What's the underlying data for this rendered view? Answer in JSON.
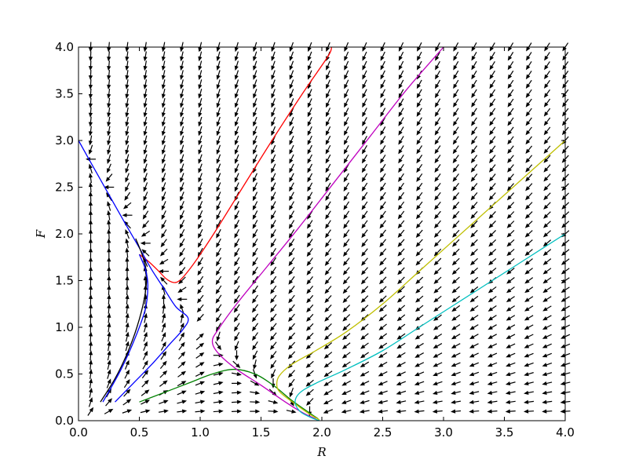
{
  "chart_data": {
    "type": "line",
    "title": "",
    "xlabel": "R",
    "ylabel": "F",
    "xlim": [
      0,
      4
    ],
    "ylim": [
      0,
      4
    ],
    "xticks": [
      "0.0",
      "0.5",
      "1.0",
      "1.5",
      "2.0",
      "2.5",
      "3.0",
      "3.5",
      "4.0"
    ],
    "yticks": [
      "0.0",
      "0.5",
      "1.0",
      "1.5",
      "2.0",
      "2.5",
      "3.0",
      "3.5",
      "4.0"
    ],
    "grid": false,
    "legend": "none",
    "quiver": {
      "model": "competitive Lotka-Volterra direction field: dR/dt = R(2 - R - F), dF/dt = F(3 - F - 2R)",
      "x_start": 0.1,
      "x_step": 0.15,
      "x_count": 27,
      "y_start": 0.1,
      "y_step": 0.1,
      "y_count": 40,
      "color": "#000000"
    },
    "series": [
      {
        "color": "#ff0000",
        "values": [
          [
            0.5,
            1.78
          ],
          [
            0.58,
            1.7
          ],
          [
            0.66,
            1.6
          ],
          [
            0.72,
            1.52
          ],
          [
            0.78,
            1.48
          ],
          [
            0.83,
            1.5
          ],
          [
            0.9,
            1.6
          ],
          [
            1.0,
            1.78
          ],
          [
            1.15,
            2.08
          ],
          [
            1.35,
            2.5
          ],
          [
            1.6,
            3.02
          ],
          [
            1.85,
            3.52
          ],
          [
            2.05,
            3.9
          ],
          [
            2.08,
            4.0
          ]
        ]
      },
      {
        "color": "#0000ff",
        "values": [
          [
            0.0,
            3.0
          ],
          [
            0.12,
            2.72
          ],
          [
            0.25,
            2.42
          ],
          [
            0.38,
            2.12
          ],
          [
            0.5,
            1.85
          ],
          [
            0.6,
            1.62
          ],
          [
            0.7,
            1.42
          ],
          [
            0.8,
            1.22
          ],
          [
            0.9,
            1.1
          ],
          [
            0.86,
            0.98
          ],
          [
            0.75,
            0.82
          ],
          [
            0.6,
            0.6
          ],
          [
            0.45,
            0.4
          ],
          [
            0.3,
            0.2
          ]
        ]
      },
      {
        "color": "#000000",
        "values": [
          [
            0.18,
            0.2
          ],
          [
            0.3,
            0.45
          ],
          [
            0.4,
            0.72
          ],
          [
            0.48,
            1.0
          ],
          [
            0.54,
            1.3
          ],
          [
            0.56,
            1.55
          ],
          [
            0.53,
            1.75
          ],
          [
            0.47,
            1.95
          ]
        ]
      },
      {
        "color": "#0000ff",
        "values": [
          [
            0.2,
            0.2
          ],
          [
            0.35,
            0.55
          ],
          [
            0.47,
            0.9
          ],
          [
            0.55,
            1.2
          ],
          [
            0.57,
            1.45
          ],
          [
            0.55,
            1.62
          ],
          [
            0.5,
            1.78
          ]
        ]
      },
      {
        "color": "#008000",
        "values": [
          [
            0.5,
            0.2
          ],
          [
            0.7,
            0.3
          ],
          [
            0.9,
            0.4
          ],
          [
            1.1,
            0.5
          ],
          [
            1.28,
            0.55
          ],
          [
            1.45,
            0.5
          ],
          [
            1.6,
            0.38
          ],
          [
            1.75,
            0.22
          ],
          [
            1.88,
            0.1
          ],
          [
            1.97,
            0.02
          ]
        ]
      },
      {
        "color": "#bf00bf",
        "values": [
          [
            3.0,
            4.0
          ],
          [
            2.7,
            3.55
          ],
          [
            2.4,
            3.05
          ],
          [
            2.1,
            2.55
          ],
          [
            1.8,
            2.05
          ],
          [
            1.55,
            1.65
          ],
          [
            1.3,
            1.25
          ],
          [
            1.15,
            0.98
          ],
          [
            1.1,
            0.85
          ],
          [
            1.15,
            0.72
          ],
          [
            1.3,
            0.55
          ],
          [
            1.5,
            0.38
          ],
          [
            1.7,
            0.2
          ],
          [
            1.85,
            0.08
          ],
          [
            1.95,
            0.02
          ]
        ]
      },
      {
        "color": "#bfbf00",
        "values": [
          [
            4.0,
            3.0
          ],
          [
            3.7,
            2.65
          ],
          [
            3.4,
            2.3
          ],
          [
            3.1,
            1.95
          ],
          [
            2.8,
            1.6
          ],
          [
            2.5,
            1.25
          ],
          [
            2.2,
            0.95
          ],
          [
            1.95,
            0.75
          ],
          [
            1.75,
            0.6
          ],
          [
            1.65,
            0.48
          ],
          [
            1.63,
            0.38
          ],
          [
            1.66,
            0.3
          ],
          [
            1.78,
            0.18
          ],
          [
            1.9,
            0.07
          ],
          [
            1.98,
            0.01
          ]
        ]
      },
      {
        "color": "#00bfbf",
        "values": [
          [
            4.0,
            2.0
          ],
          [
            3.7,
            1.75
          ],
          [
            3.4,
            1.5
          ],
          [
            3.1,
            1.25
          ],
          [
            2.8,
            1.0
          ],
          [
            2.5,
            0.75
          ],
          [
            2.2,
            0.55
          ],
          [
            1.95,
            0.4
          ],
          [
            1.82,
            0.3
          ],
          [
            1.78,
            0.2
          ],
          [
            1.82,
            0.1
          ],
          [
            1.9,
            0.04
          ],
          [
            1.98,
            0.0
          ]
        ]
      }
    ]
  }
}
